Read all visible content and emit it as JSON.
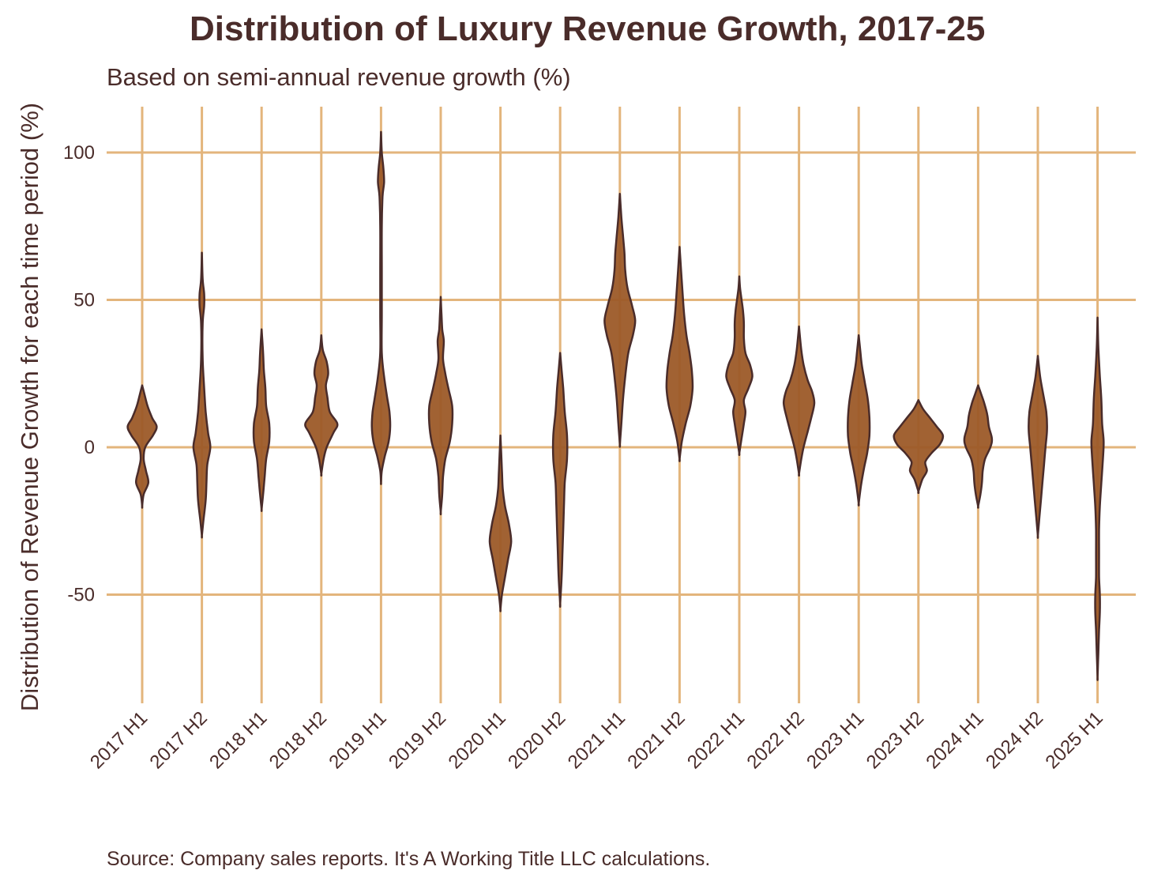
{
  "title": "Distribution of Luxury Revenue Growth, 2017-25",
  "subtitle": "Based on semi-annual revenue growth (%)",
  "source": "Source: Company sales reports. It's A Working Title LLC calculations.",
  "colors": {
    "grid": "#e3b57c",
    "violin_fill": "#9c5a28",
    "violin_stroke": "#4a2c2a",
    "text": "#4a2c2a"
  },
  "chart_data": {
    "type": "violin",
    "ylabel": "Distribution of Revenue Growth for each time period (%)",
    "xlabel": "",
    "ylim": [
      -85,
      115
    ],
    "yticks": [
      100,
      50,
      0,
      -50
    ],
    "ytick_labels": [
      "100",
      "50",
      "0",
      "-50"
    ],
    "grid": true,
    "categories": [
      "2017 H1",
      "2017 H2",
      "2018 H1",
      "2018 H2",
      "2019 H1",
      "2019 H2",
      "2020 H1",
      "2020 H2",
      "2021 H1",
      "2021 H2",
      "2022 H1",
      "2022 H2",
      "2023 H1",
      "2023 H2",
      "2024 H1",
      "2024 H2",
      "2025 H1"
    ],
    "distributions": [
      {
        "min": -20,
        "max": 21,
        "density": [
          [
            -20,
            0
          ],
          [
            -16,
            2
          ],
          [
            -12,
            8
          ],
          [
            -8,
            5
          ],
          [
            -4,
            2
          ],
          [
            0,
            4
          ],
          [
            4,
            14
          ],
          [
            7,
            19
          ],
          [
            10,
            13
          ],
          [
            14,
            7
          ],
          [
            18,
            3
          ],
          [
            21,
            0
          ]
        ]
      },
      {
        "min": -30,
        "max": 66,
        "density": [
          [
            -30,
            0
          ],
          [
            -25,
            2
          ],
          [
            -18,
            5
          ],
          [
            -12,
            6
          ],
          [
            -6,
            7
          ],
          [
            0,
            11
          ],
          [
            5,
            8
          ],
          [
            12,
            5
          ],
          [
            20,
            3
          ],
          [
            30,
            1
          ],
          [
            42,
            1
          ],
          [
            48,
            3
          ],
          [
            52,
            3
          ],
          [
            57,
            1
          ],
          [
            66,
            0
          ]
        ]
      },
      {
        "min": -21,
        "max": 40,
        "density": [
          [
            -21,
            0
          ],
          [
            -16,
            2
          ],
          [
            -10,
            4
          ],
          [
            -4,
            6
          ],
          [
            2,
            10
          ],
          [
            8,
            10
          ],
          [
            14,
            6
          ],
          [
            20,
            5
          ],
          [
            26,
            3
          ],
          [
            32,
            2
          ],
          [
            40,
            0
          ]
        ]
      },
      {
        "min": -9,
        "max": 38,
        "density": [
          [
            -9,
            0
          ],
          [
            -4,
            3
          ],
          [
            0,
            7
          ],
          [
            5,
            16
          ],
          [
            8,
            21
          ],
          [
            12,
            11
          ],
          [
            17,
            8
          ],
          [
            21,
            6
          ],
          [
            25,
            9
          ],
          [
            29,
            7
          ],
          [
            33,
            2
          ],
          [
            38,
            0
          ]
        ]
      },
      {
        "min": -12,
        "max": 107,
        "density": [
          [
            -12,
            0
          ],
          [
            -8,
            1
          ],
          [
            -3,
            5
          ],
          [
            2,
            10
          ],
          [
            7,
            12
          ],
          [
            12,
            11
          ],
          [
            17,
            8
          ],
          [
            24,
            4
          ],
          [
            32,
            1
          ],
          [
            45,
            1
          ],
          [
            60,
            1
          ],
          [
            75,
            1
          ],
          [
            85,
            2
          ],
          [
            90,
            4
          ],
          [
            95,
            3
          ],
          [
            100,
            1
          ],
          [
            107,
            0
          ]
        ]
      },
      {
        "min": -22,
        "max": 51,
        "density": [
          [
            -22,
            0
          ],
          [
            -16,
            2
          ],
          [
            -10,
            3
          ],
          [
            -4,
            6
          ],
          [
            2,
            12
          ],
          [
            8,
            15
          ],
          [
            14,
            15
          ],
          [
            20,
            10
          ],
          [
            25,
            6
          ],
          [
            30,
            3
          ],
          [
            36,
            4
          ],
          [
            40,
            2
          ],
          [
            45,
            1
          ],
          [
            51,
            0
          ]
        ]
      },
      {
        "min": -55,
        "max": 4,
        "density": [
          [
            -55,
            0
          ],
          [
            -50,
            2
          ],
          [
            -44,
            6
          ],
          [
            -38,
            10
          ],
          [
            -32,
            14
          ],
          [
            -26,
            11
          ],
          [
            -20,
            6
          ],
          [
            -14,
            3
          ],
          [
            -8,
            2
          ],
          [
            -2,
            1
          ],
          [
            4,
            0
          ]
        ]
      },
      {
        "min": -53,
        "max": 32,
        "density": [
          [
            -53,
            0
          ],
          [
            -44,
            2
          ],
          [
            -36,
            3
          ],
          [
            -28,
            4
          ],
          [
            -20,
            5
          ],
          [
            -12,
            6
          ],
          [
            -4,
            9
          ],
          [
            4,
            9
          ],
          [
            12,
            6
          ],
          [
            20,
            4
          ],
          [
            26,
            2
          ],
          [
            32,
            0
          ]
        ]
      },
      {
        "min": 1,
        "max": 86,
        "density": [
          [
            1,
            0
          ],
          [
            8,
            2
          ],
          [
            16,
            4
          ],
          [
            24,
            7
          ],
          [
            32,
            11
          ],
          [
            38,
            17
          ],
          [
            43,
            20
          ],
          [
            48,
            16
          ],
          [
            54,
            10
          ],
          [
            60,
            7
          ],
          [
            66,
            6
          ],
          [
            72,
            4
          ],
          [
            78,
            2
          ],
          [
            86,
            0
          ]
        ]
      },
      {
        "min": -4,
        "max": 68,
        "density": [
          [
            -4,
            0
          ],
          [
            2,
            3
          ],
          [
            8,
            8
          ],
          [
            14,
            14
          ],
          [
            20,
            17
          ],
          [
            26,
            16
          ],
          [
            32,
            13
          ],
          [
            38,
            9
          ],
          [
            45,
            6
          ],
          [
            52,
            4
          ],
          [
            60,
            2
          ],
          [
            68,
            0
          ]
        ]
      },
      {
        "min": -2,
        "max": 58,
        "density": [
          [
            -2,
            0
          ],
          [
            3,
            3
          ],
          [
            8,
            6
          ],
          [
            12,
            8
          ],
          [
            16,
            6
          ],
          [
            20,
            12
          ],
          [
            24,
            17
          ],
          [
            28,
            14
          ],
          [
            32,
            8
          ],
          [
            37,
            6
          ],
          [
            42,
            6
          ],
          [
            46,
            5
          ],
          [
            50,
            3
          ],
          [
            54,
            1
          ],
          [
            58,
            0
          ]
        ]
      },
      {
        "min": -9,
        "max": 41,
        "density": [
          [
            -9,
            0
          ],
          [
            -4,
            3
          ],
          [
            0,
            6
          ],
          [
            5,
            11
          ],
          [
            10,
            16
          ],
          [
            15,
            20
          ],
          [
            19,
            17
          ],
          [
            23,
            11
          ],
          [
            28,
            6
          ],
          [
            33,
            3
          ],
          [
            41,
            0
          ]
        ]
      },
      {
        "min": -19,
        "max": 38,
        "density": [
          [
            -19,
            0
          ],
          [
            -13,
            3
          ],
          [
            -7,
            7
          ],
          [
            -2,
            11
          ],
          [
            4,
            14
          ],
          [
            10,
            14
          ],
          [
            16,
            12
          ],
          [
            22,
            8
          ],
          [
            28,
            4
          ],
          [
            33,
            2
          ],
          [
            38,
            0
          ]
        ]
      },
      {
        "min": -15,
        "max": 16,
        "density": [
          [
            -15,
            0
          ],
          [
            -11,
            5
          ],
          [
            -8,
            11
          ],
          [
            -5,
            9
          ],
          [
            -2,
            17
          ],
          [
            1,
            28
          ],
          [
            4,
            32
          ],
          [
            7,
            24
          ],
          [
            10,
            15
          ],
          [
            13,
            6
          ],
          [
            16,
            0
          ]
        ]
      },
      {
        "min": -20,
        "max": 21,
        "density": [
          [
            -20,
            0
          ],
          [
            -16,
            3
          ],
          [
            -12,
            5
          ],
          [
            -8,
            6
          ],
          [
            -4,
            9
          ],
          [
            0,
            16
          ],
          [
            3,
            18
          ],
          [
            7,
            14
          ],
          [
            11,
            12
          ],
          [
            15,
            8
          ],
          [
            18,
            4
          ],
          [
            21,
            0
          ]
        ]
      },
      {
        "min": -30,
        "max": 31,
        "density": [
          [
            -30,
            0
          ],
          [
            -24,
            2
          ],
          [
            -18,
            4
          ],
          [
            -12,
            6
          ],
          [
            -6,
            8
          ],
          [
            0,
            10
          ],
          [
            6,
            12
          ],
          [
            12,
            11
          ],
          [
            18,
            7
          ],
          [
            24,
            3
          ],
          [
            31,
            0
          ]
        ]
      },
      {
        "min": -78,
        "max": 44,
        "density": [
          [
            -78,
            0
          ],
          [
            -70,
            1
          ],
          [
            -62,
            2
          ],
          [
            -56,
            3
          ],
          [
            -50,
            3
          ],
          [
            -44,
            2
          ],
          [
            -36,
            2
          ],
          [
            -28,
            2
          ],
          [
            -20,
            3
          ],
          [
            -12,
            5
          ],
          [
            -4,
            7
          ],
          [
            2,
            8
          ],
          [
            8,
            6
          ],
          [
            16,
            5
          ],
          [
            24,
            3
          ],
          [
            34,
            1
          ],
          [
            44,
            0
          ]
        ]
      }
    ]
  }
}
